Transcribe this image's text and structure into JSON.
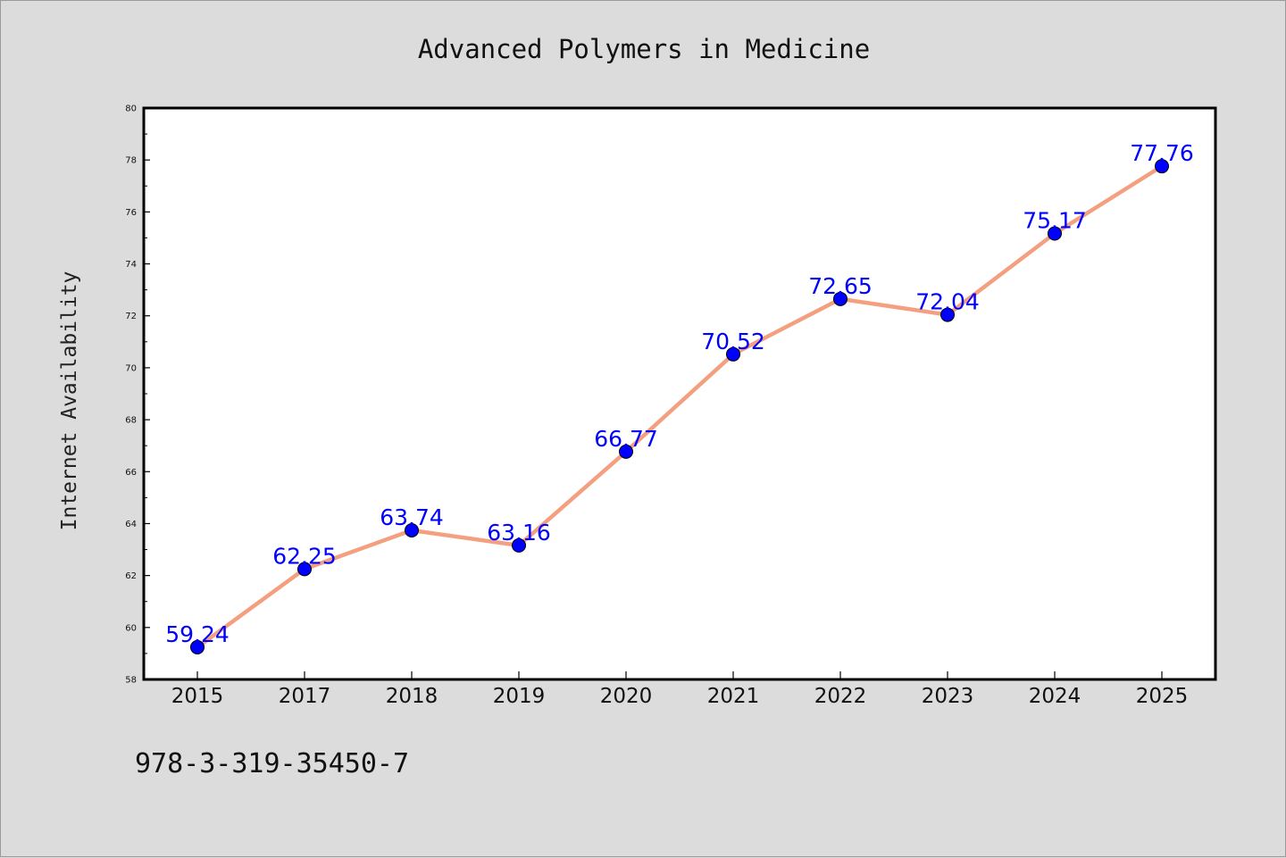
{
  "chart_data": {
    "type": "line",
    "title": "Advanced Polymers in Medicine",
    "ylabel": "Internet Availability",
    "xlabel": "",
    "categories": [
      "2015",
      "2017",
      "2018",
      "2019",
      "2020",
      "2021",
      "2022",
      "2023",
      "2024",
      "2025"
    ],
    "series": [
      {
        "values": [
          59.24,
          62.25,
          63.74,
          63.16,
          66.77,
          70.52,
          72.65,
          72.04,
          75.17,
          77.76
        ]
      }
    ],
    "data_labels": [
      "59.24",
      "62.25",
      "63.74",
      "63.16",
      "66.77",
      "70.52",
      "72.65",
      "72.04",
      "75.17",
      "77.76"
    ],
    "ylim": [
      58,
      80
    ],
    "yticks": [
      "58",
      "60",
      "62",
      "64",
      "66",
      "68",
      "70",
      "72",
      "74",
      "76",
      "78",
      "80"
    ],
    "grid": false,
    "line_color": "#f4a080",
    "marker_color": "#0000ff",
    "label_color": "#0000ff"
  },
  "footer": {
    "isbn": "978-3-319-35450-7"
  }
}
